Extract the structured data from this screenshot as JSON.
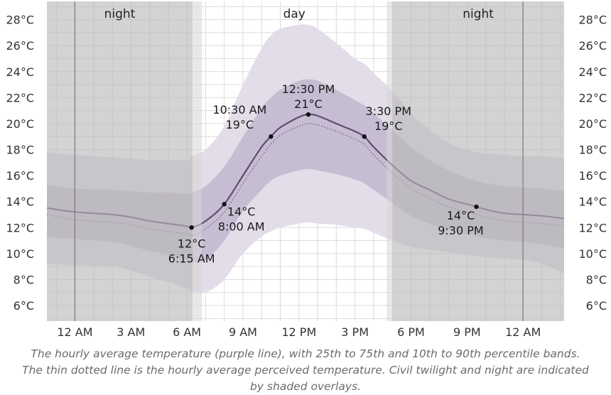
{
  "chart_data": {
    "type": "line",
    "periods": [
      {
        "label": "night",
        "start": -4,
        "end": 6.3
      },
      {
        "label": "day",
        "start": 6.8,
        "end": 16.7
      },
      {
        "label": "night",
        "start": 17.0,
        "end": 26.2
      }
    ],
    "twilight": [
      {
        "start": 6.3,
        "end": 6.8
      },
      {
        "start": 16.7,
        "end": 17.0
      }
    ],
    "x_ticks": [
      {
        "x": 0,
        "label": "12 AM"
      },
      {
        "x": 3,
        "label": "3 AM"
      },
      {
        "x": 6,
        "label": "6 AM"
      },
      {
        "x": 9,
        "label": "9 AM"
      },
      {
        "x": 12,
        "label": "12 PM"
      },
      {
        "x": 15,
        "label": "3 PM"
      },
      {
        "x": 18,
        "label": "6 PM"
      },
      {
        "x": 21,
        "label": "9 PM"
      },
      {
        "x": 24,
        "label": "12 AM"
      }
    ],
    "y_ticks": [
      6,
      8,
      10,
      12,
      14,
      16,
      18,
      20,
      22,
      24,
      26,
      28
    ],
    "y_tick_labels": [
      "6°C",
      "8°C",
      "10°C",
      "12°C",
      "14°C",
      "16°C",
      "18°C",
      "20°C",
      "22°C",
      "24°C",
      "26°C",
      "28°C"
    ],
    "xlim": [
      -1.5,
      26.2
    ],
    "ylim": [
      4.8,
      29.4
    ],
    "series": [
      {
        "key": "avg",
        "x": [
          -1.5,
          0,
          2,
          3,
          4,
          5,
          6,
          6.25,
          7,
          8,
          9,
          10,
          10.5,
          11,
          12,
          12.5,
          13,
          14,
          15,
          15.5,
          16,
          17,
          18,
          19,
          20,
          21,
          21.5,
          22,
          23,
          24,
          25,
          26.2
        ],
        "values": [
          13.5,
          13.2,
          13.0,
          12.8,
          12.5,
          12.3,
          12.1,
          12.0,
          12.5,
          13.8,
          16.0,
          18.2,
          19.0,
          19.7,
          20.5,
          20.7,
          20.6,
          20.0,
          19.4,
          19.0,
          18.2,
          16.8,
          15.6,
          14.9,
          14.2,
          13.8,
          13.6,
          13.4,
          13.1,
          13.0,
          12.9,
          12.7
        ]
      },
      {
        "key": "feels",
        "x": [
          -1.5,
          0,
          2,
          3,
          4,
          5,
          6,
          6.25,
          7,
          8,
          9,
          10,
          10.5,
          11,
          12,
          12.5,
          13,
          14,
          15,
          15.5,
          16,
          17,
          18,
          19,
          20,
          21,
          21.5,
          22,
          23,
          24,
          25,
          26.2
        ],
        "values": [
          13.0,
          12.6,
          12.4,
          12.2,
          11.9,
          11.7,
          11.5,
          11.4,
          11.9,
          13.2,
          15.4,
          17.5,
          18.4,
          19.1,
          19.8,
          20.0,
          19.9,
          19.4,
          18.8,
          18.4,
          17.6,
          16.2,
          15.0,
          14.3,
          13.6,
          13.2,
          13.0,
          12.8,
          12.5,
          12.4,
          12.3,
          12.1
        ]
      }
    ],
    "bands": [
      {
        "key": "p10_p90",
        "x": [
          -1.5,
          0,
          2,
          3,
          4,
          5,
          6,
          6.25,
          7,
          8,
          9,
          10,
          10.5,
          11,
          12,
          12.5,
          13,
          14,
          15,
          15.5,
          16,
          17,
          18,
          19,
          20,
          21,
          21.5,
          22,
          23,
          24,
          25,
          26.2
        ],
        "low": [
          9.2,
          9.1,
          9.0,
          8.7,
          8.2,
          7.8,
          7.3,
          7.0,
          7.0,
          8.0,
          10.0,
          11.3,
          11.7,
          12.0,
          12.3,
          12.4,
          12.3,
          12.2,
          12.0,
          11.9,
          11.6,
          11.0,
          10.5,
          10.3,
          10.1,
          9.9,
          9.8,
          9.7,
          9.6,
          9.5,
          9.2,
          8.5
        ],
        "high": [
          17.8,
          17.6,
          17.4,
          17.3,
          17.2,
          17.2,
          17.2,
          17.5,
          18.0,
          19.8,
          23.0,
          25.8,
          26.8,
          27.3,
          27.6,
          27.6,
          27.3,
          26.2,
          25.0,
          24.6,
          23.9,
          22.5,
          20.8,
          19.5,
          18.5,
          18.0,
          17.8,
          17.7,
          17.6,
          17.5,
          17.5,
          17.3
        ]
      },
      {
        "key": "p25_p75",
        "x": [
          -1.5,
          0,
          2,
          3,
          4,
          5,
          6,
          6.25,
          7,
          8,
          9,
          10,
          10.5,
          11,
          12,
          12.5,
          13,
          14,
          15,
          15.5,
          16,
          17,
          18,
          19,
          20,
          21,
          21.5,
          22,
          23,
          24,
          25,
          26.2
        ],
        "low": [
          11.3,
          11.1,
          10.9,
          10.6,
          10.2,
          9.9,
          9.5,
          9.3,
          9.5,
          11.0,
          13.3,
          14.9,
          15.6,
          16.0,
          16.4,
          16.5,
          16.4,
          16.1,
          15.7,
          15.4,
          14.9,
          13.9,
          12.9,
          12.3,
          11.8,
          11.5,
          11.3,
          11.2,
          11.0,
          10.9,
          10.7,
          10.4
        ],
        "high": [
          15.3,
          15.0,
          14.9,
          14.8,
          14.7,
          14.7,
          14.6,
          14.7,
          15.2,
          16.7,
          19.0,
          21.2,
          22.0,
          22.6,
          23.3,
          23.4,
          23.3,
          22.6,
          21.8,
          21.4,
          20.8,
          19.5,
          18.2,
          17.2,
          16.4,
          15.8,
          15.6,
          15.4,
          15.2,
          15.1,
          15.0,
          14.8
        ]
      }
    ],
    "annotations": [
      {
        "x": 6.25,
        "y": 12.0,
        "lines": [
          "12°C",
          "6:15 AM"
        ],
        "pos": "below"
      },
      {
        "x": 8.0,
        "y": 13.8,
        "lines": [
          "14°C",
          "8:00 AM"
        ],
        "pos": "below-right"
      },
      {
        "x": 10.5,
        "y": 19.0,
        "lines": [
          "10:30 AM",
          "19°C"
        ],
        "pos": "above-left"
      },
      {
        "x": 12.5,
        "y": 20.7,
        "lines": [
          "12:30 PM",
          "21°C"
        ],
        "pos": "above"
      },
      {
        "x": 15.5,
        "y": 19.0,
        "lines": [
          "3:30 PM",
          "19°C"
        ],
        "pos": "above-right"
      },
      {
        "x": 21.5,
        "y": 13.6,
        "lines": [
          "14°C",
          "9:30 PM"
        ],
        "pos": "below-left"
      }
    ],
    "colors": {
      "avg_line": "#5e4d72",
      "feels_line": "#6e6080",
      "band_outer": "#e3dde9",
      "band_inner": "#c7bdd2",
      "night_overlay": "#b8b8b8",
      "twilight_overlay": "#d6d6d6",
      "grid": "#dcdcdc",
      "midnight_line": "#7a7a7a"
    },
    "grid": true
  },
  "caption": "The hourly average temperature (purple line), with 25th to 75th and 10th to 90th percentile bands. The thin dotted line is the hourly average perceived temperature. Civil twilight and night are indicated by shaded overlays.",
  "nav": {
    "prev_icon": "chevron-left-icon",
    "next_icon": "chevron-right-icon"
  }
}
